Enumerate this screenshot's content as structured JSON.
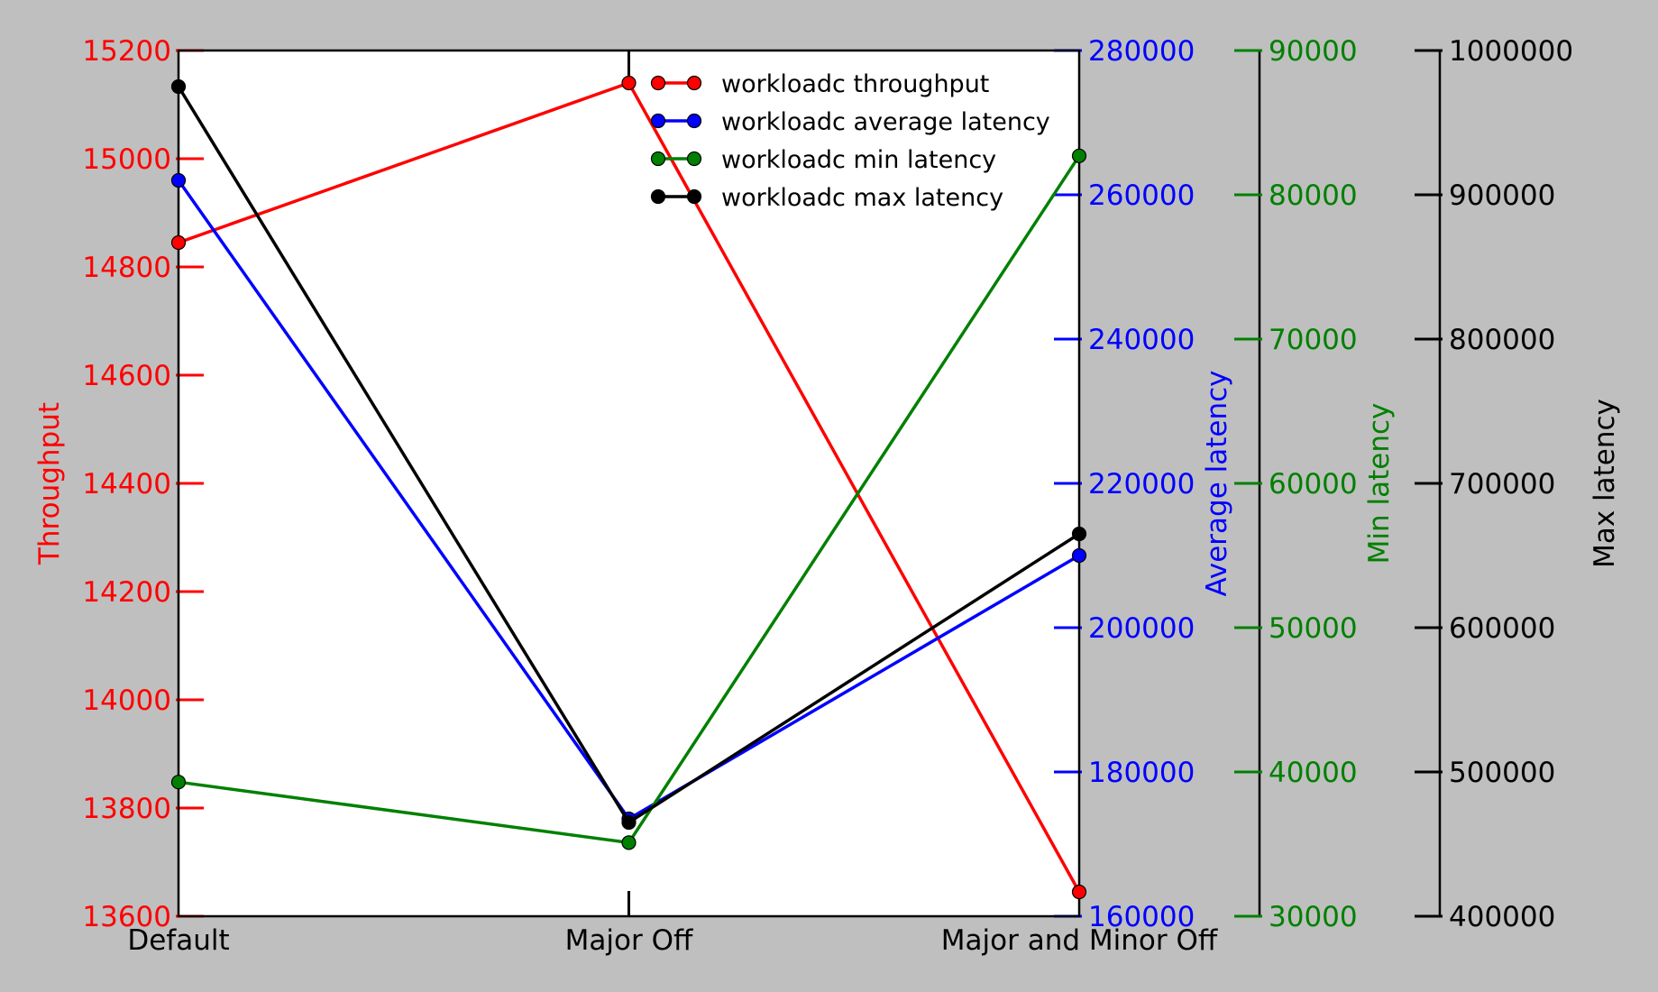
{
  "chart_data": {
    "type": "line",
    "categories": [
      "Default",
      "Major Off",
      "Major and Minor Off"
    ],
    "axes": [
      {
        "key": "throughput",
        "label": "Throughput",
        "color": "#ff0000",
        "side": "left",
        "ylim": [
          13600,
          15200
        ],
        "ticks": [
          13600,
          13800,
          14000,
          14200,
          14400,
          14600,
          14800,
          15000,
          15200
        ]
      },
      {
        "key": "avg",
        "label": "Average latency",
        "color": "#0000ff",
        "side": "right",
        "ylim": [
          160000,
          280000
        ],
        "ticks": [
          160000,
          180000,
          200000,
          220000,
          240000,
          260000,
          280000
        ]
      },
      {
        "key": "min",
        "label": "Min latency",
        "color": "#008000",
        "side": "right",
        "ylim": [
          30000,
          90000
        ],
        "ticks": [
          30000,
          40000,
          50000,
          60000,
          70000,
          80000,
          90000
        ]
      },
      {
        "key": "max",
        "label": "Max latency",
        "color": "#000000",
        "side": "right",
        "ylim": [
          400000,
          1000000
        ],
        "ticks": [
          400000,
          500000,
          600000,
          700000,
          800000,
          900000,
          1000000
        ]
      }
    ],
    "series": [
      {
        "name": "workloadc throughput",
        "axis": "throughput",
        "color": "#ff0000",
        "values": [
          14845,
          15140,
          13645
        ]
      },
      {
        "name": "workloadc average latency",
        "axis": "avg",
        "color": "#0000ff",
        "values": [
          262000,
          173500,
          210000
        ]
      },
      {
        "name": "workloadc min latency",
        "axis": "min",
        "color": "#008000",
        "values": [
          39300,
          35100,
          82700
        ]
      },
      {
        "name": "workloadc max latency",
        "axis": "max",
        "color": "#000000",
        "values": [
          975000,
          465000,
          665000
        ]
      }
    ],
    "legend": "top-right",
    "grid": false
  }
}
